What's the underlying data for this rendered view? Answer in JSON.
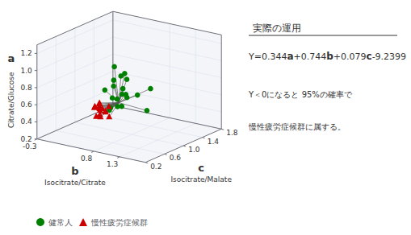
{
  "chart_data": {
    "type": "scatter3d",
    "title": "実際の運用",
    "annotations": [
      "Y=0.344a+0.744b+0.079c-9.2399",
      "Y＜0になると 95%の確率で",
      "慢性疲労症候群に属する。"
    ],
    "xlabel": "b",
    "xsublabel": "Isocitrate/Citrate",
    "ylabel": "c",
    "ysublabel": "Isocitrate/Malate",
    "zlabel": "a",
    "zsublabel": "Citrate/Glucose",
    "xlim": [
      -0.3,
      1.8
    ],
    "xticks": [
      -0.3,
      0.8,
      1.3
    ],
    "ylim": [
      0.2,
      1.8
    ],
    "yticks": [
      0.2,
      0.6,
      {
        "value": 1.0,
        "label": "1.0"
      },
      1.4,
      1.8
    ],
    "zlim": [
      0.2,
      1.3
    ],
    "zticks": [
      0.2,
      0.4,
      0.6,
      0.8,
      {
        "value": 1.0,
        "label": "1.0"
      },
      1.2
    ],
    "grid": true,
    "legend": "bottom",
    "centroid": {
      "x": 0.75,
      "y": 0.78,
      "z": 0.62,
      "color": "#555555"
    },
    "series": [
      {
        "name": "健常人",
        "color": "#008000",
        "marker": "circle",
        "x": [
          0.62,
          0.7,
          0.75,
          0.8,
          0.65,
          0.72,
          0.68,
          0.85,
          0.7,
          0.75,
          0.9,
          0.6,
          0.72,
          1.35,
          0.75,
          0.55,
          0.8,
          0.78,
          0.68,
          1.02
        ],
        "y": [
          0.75,
          0.8,
          0.85,
          0.7,
          0.78,
          0.9,
          0.72,
          0.82,
          0.88,
          0.95,
          0.68,
          0.65,
          0.72,
          0.72,
          1.45,
          0.8,
          0.85,
          0.92,
          0.75,
          0.88
        ],
        "z": [
          0.55,
          0.65,
          0.7,
          0.6,
          0.8,
          0.75,
          0.68,
          0.72,
          0.9,
          0.85,
          0.62,
          0.78,
          1.05,
          0.62,
          0.62,
          0.5,
          0.95,
          0.65,
          0.88,
          0.72
        ]
      },
      {
        "name": "慢性疲労症候群",
        "color": "#cc0000",
        "marker": "triangle",
        "x": [
          0.5,
          0.55,
          0.48,
          0.52,
          0.58,
          0.45,
          0.5,
          0.56,
          0.54,
          0.62,
          0.48,
          0.6,
          0.52,
          0.46,
          0.56,
          0.54
        ],
        "y": [
          0.65,
          0.6,
          0.68,
          0.62,
          0.58,
          0.7,
          0.55,
          0.64,
          0.6,
          0.72,
          0.56,
          0.66,
          0.75,
          0.62,
          0.58,
          0.8
        ],
        "z": [
          0.55,
          0.5,
          0.52,
          0.58,
          0.48,
          0.54,
          0.6,
          0.56,
          0.62,
          0.45,
          0.58,
          0.52,
          0.5,
          0.46,
          0.64,
          0.54
        ]
      }
    ]
  }
}
